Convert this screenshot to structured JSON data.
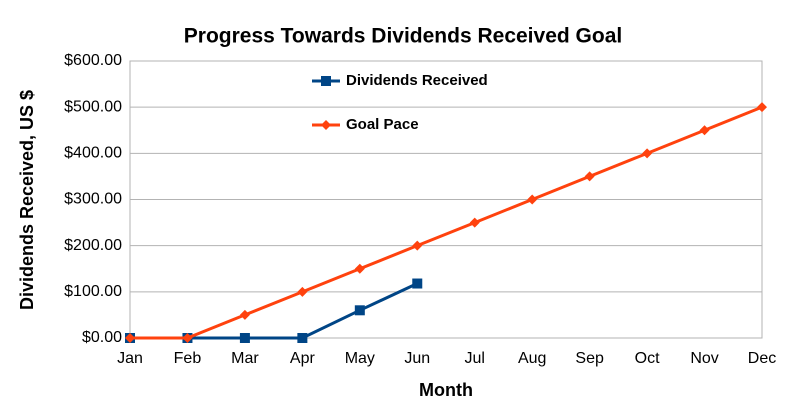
{
  "chart_data": {
    "type": "line",
    "title": "Progress Towards Dividends Received Goal",
    "x_label": "Month",
    "y_label": "Dividends Received, US $",
    "categories": [
      "Jan",
      "Feb",
      "Mar",
      "Apr",
      "May",
      "Jun",
      "Jul",
      "Aug",
      "Sep",
      "Oct",
      "Nov",
      "Dec"
    ],
    "series": [
      {
        "name": "Dividends Received",
        "color": "#004586",
        "marker": "square",
        "values": [
          0,
          0,
          0,
          0,
          60,
          118,
          null,
          null,
          null,
          null,
          null,
          null
        ]
      },
      {
        "name": "Goal Pace",
        "color": "#ff420e",
        "marker": "diamond",
        "values": [
          0,
          0,
          50,
          100,
          150,
          200,
          250,
          300,
          350,
          400,
          450,
          500
        ]
      }
    ],
    "ylim": [
      0,
      600
    ],
    "yticks": [
      {
        "value": 0,
        "label": "$0.00"
      },
      {
        "value": 100,
        "label": "$100.00"
      },
      {
        "value": 200,
        "label": "$200.00"
      },
      {
        "value": 300,
        "label": "$300.00"
      },
      {
        "value": 400,
        "label": "$400.00"
      },
      {
        "value": 500,
        "label": "$500.00"
      },
      {
        "value": 600,
        "label": "$600.00"
      }
    ],
    "grid": true,
    "legend": "top-left"
  }
}
